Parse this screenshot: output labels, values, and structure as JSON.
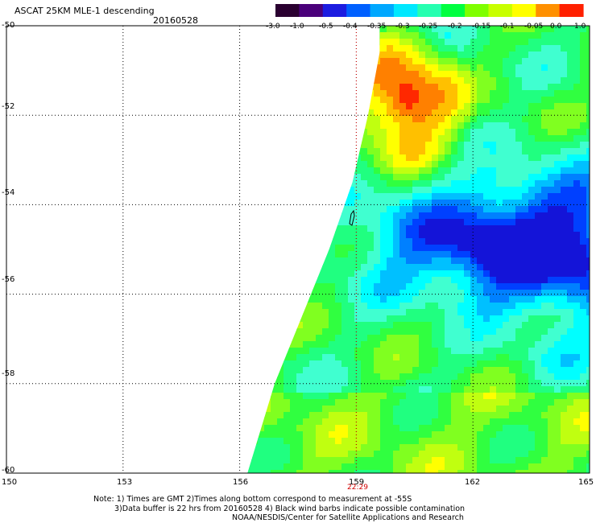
{
  "header": {
    "title": "ASCAT 25KM MLE-1 descending",
    "date": "20160528"
  },
  "colorbar": {
    "ticks": [
      "-3.0",
      "-1.0",
      "-0.5",
      "-0.4",
      "-0.35",
      "-0.3",
      "-0.25",
      "-0.2",
      "-0.15",
      "-0.1",
      "-0.05",
      "0.0",
      "1.0"
    ],
    "colors": [
      "#2a0030",
      "#4a007a",
      "#1c1ce0",
      "#0060ff",
      "#00a8ff",
      "#00e8ff",
      "#26ffb0",
      "#00ff40",
      "#7fff00",
      "#c8ff00",
      "#ffff00",
      "#ff9000",
      "#ff2000"
    ]
  },
  "axes": {
    "lat_labels": [
      "-50",
      "-52",
      "-54",
      "-56",
      "-58",
      "-60"
    ],
    "lon_labels": [
      "150",
      "153",
      "156",
      "159",
      "162",
      "165"
    ],
    "time_label": "22:29"
  },
  "notes": {
    "line1": "Note: 1) Times are GMT 2)Times along bottom correspond to measurement at -55S",
    "line2": "3)Data buffer is 22 hrs from 20160528 4) Black wind barbs indicate possible contamination",
    "line3": "NOAA/NESDIS/Center for Satellite Applications and Research"
  },
  "map_data": {
    "lat_range": [
      -60,
      -50
    ],
    "lon_range": [
      150,
      165
    ],
    "grid_lats": [
      -50,
      -52,
      -54,
      -56,
      -58,
      -60
    ],
    "grid_lons": [
      150,
      153,
      156,
      159,
      162,
      165
    ],
    "swath_edge_lon": [
      159.6,
      159.3,
      158.9,
      158.3,
      157.6,
      156.9,
      156.2
    ],
    "swath_edge_lat": [
      -50.6,
      -52.0,
      -53.5,
      -55.0,
      -56.5,
      -58.0,
      -60.0
    ]
  }
}
